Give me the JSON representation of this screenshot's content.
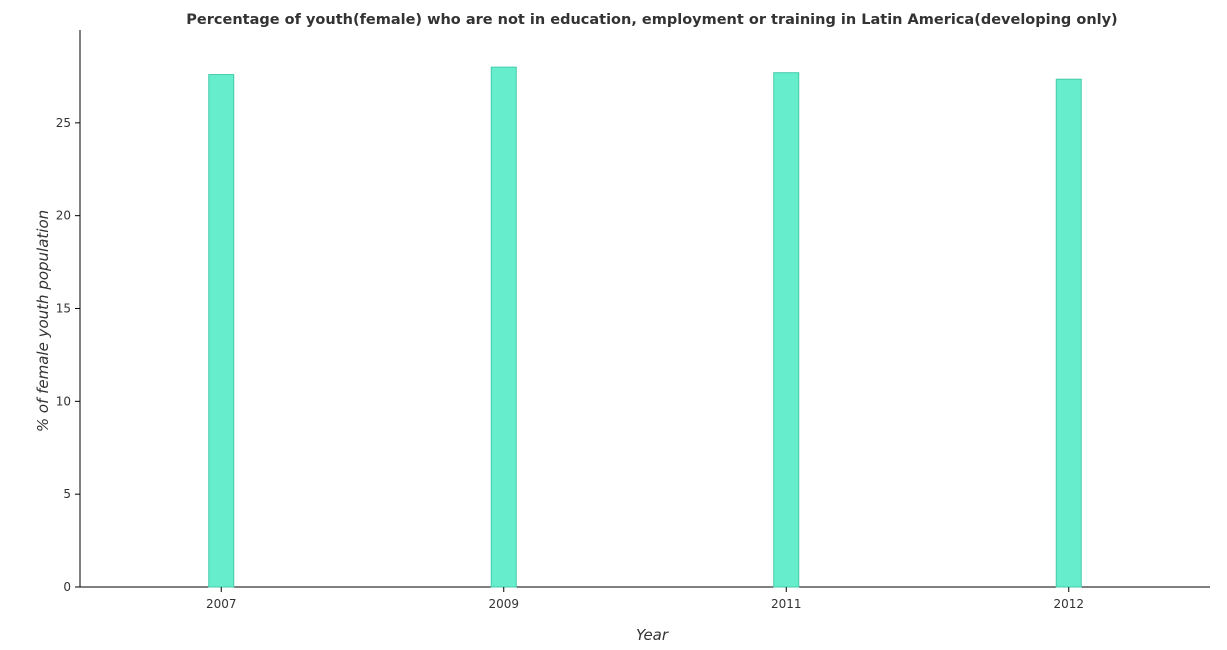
{
  "chart_data": {
    "type": "bar",
    "title": "Percentage of youth(female) who are not in education, employment or training in Latin America(developing only)",
    "xlabel": "Year",
    "ylabel": "% of female youth population",
    "categories": [
      "2007",
      "2009",
      "2011",
      "2012"
    ],
    "values": [
      27.6,
      28.0,
      27.7,
      27.35
    ],
    "ylim": [
      0,
      30
    ],
    "yticks": [
      0,
      5,
      10,
      15,
      20,
      25
    ],
    "ytick_labels": [
      "0",
      "5",
      "10",
      "15",
      "20",
      "25"
    ],
    "grid": false,
    "bar_color": "#66eecc",
    "bar_stroke": "#44ccaa"
  }
}
